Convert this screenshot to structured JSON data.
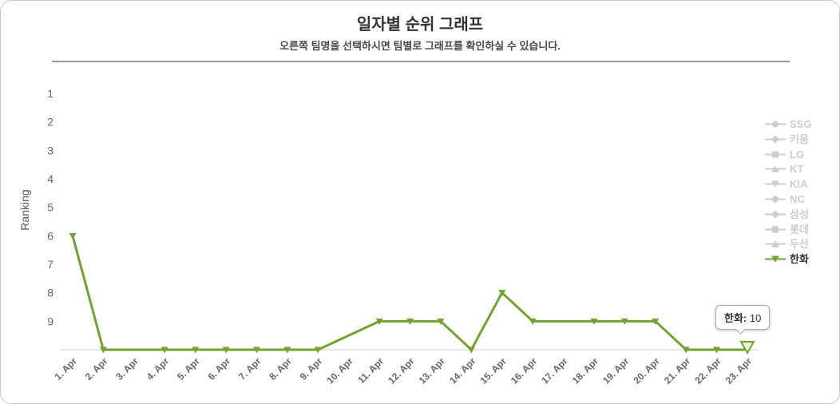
{
  "colors": {
    "series_green": "#70a42e",
    "highlight_fill": "#eaf3db",
    "legend_disabled": "#cccccc",
    "axis_text": "#666666",
    "axis_line": "#cccccc",
    "title_text": "#333333",
    "divider": "#9a9a9a"
  },
  "chart_data": {
    "type": "line",
    "title": "일자별 순위 그래프",
    "subtitle": "오른쪽 팀명을 선택하시면 팀별로 그래프를 확인하실 수 있습니다.",
    "ylabel": "Ranking",
    "xlabel": "",
    "ylim": [
      1,
      10
    ],
    "y_axis_inverted": true,
    "y_ticks": [
      1,
      2,
      3,
      4,
      5,
      6,
      7,
      8,
      9
    ],
    "grid": false,
    "legend_position": "right",
    "categories": [
      "1. Apr",
      "2. Apr",
      "3. Apr",
      "4. Apr",
      "5. Apr",
      "6. Apr",
      "7. Apr",
      "8. Apr",
      "9. Apr",
      "10. Apr",
      "11. Apr",
      "12. Apr",
      "13. Apr",
      "14. Apr",
      "15. Apr",
      "16. Apr",
      "17. Apr",
      "18. Apr",
      "19. Apr",
      "20. Apr",
      "21. Apr",
      "22. Apr",
      "23. Apr"
    ],
    "series": [
      {
        "name": "SSG",
        "visible": false,
        "marker": "circle"
      },
      {
        "name": "키움",
        "visible": false,
        "marker": "diamond"
      },
      {
        "name": "LG",
        "visible": false,
        "marker": "square"
      },
      {
        "name": "KT",
        "visible": false,
        "marker": "triangle-up"
      },
      {
        "name": "KIA",
        "visible": false,
        "marker": "triangle-down"
      },
      {
        "name": "NC",
        "visible": false,
        "marker": "circle"
      },
      {
        "name": "삼성",
        "visible": false,
        "marker": "diamond"
      },
      {
        "name": "롯데",
        "visible": false,
        "marker": "square"
      },
      {
        "name": "두산",
        "visible": false,
        "marker": "triangle-up"
      },
      {
        "name": "한화",
        "visible": true,
        "marker": "triangle-down",
        "color": "#70a42e",
        "values": [
          6,
          10,
          null,
          10,
          10,
          10,
          10,
          10,
          10,
          null,
          9,
          9,
          9,
          10,
          8,
          9,
          null,
          9,
          9,
          9,
          10,
          10,
          10
        ]
      }
    ],
    "tooltip": {
      "label": "한화:",
      "value_suffix": " 10",
      "value": 10,
      "anchor_category": "23. Apr"
    }
  }
}
